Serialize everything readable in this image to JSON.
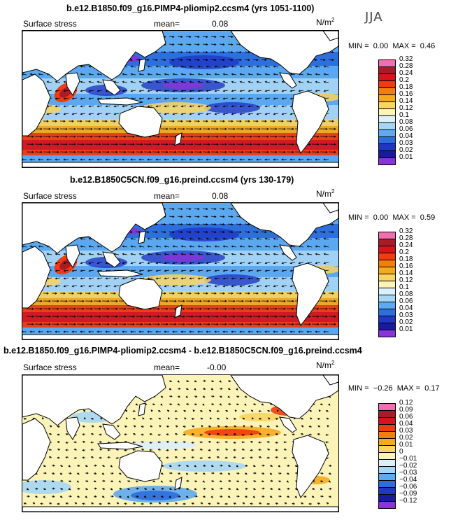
{
  "season": "JJA",
  "panels": [
    {
      "title": "b.e12.B1850.f09_g16.PIMP4-pliomip2.ccsm4 (yrs 1051-1100)",
      "field": "Surface stress",
      "mean_label": "mean=",
      "mean_value": "0.08",
      "units": "N/m",
      "units_exp": "2",
      "min_label": "MIN =",
      "min_value": "0.00",
      "max_label": "MAX =",
      "max_value": "0.46",
      "colorbar": [
        "0.32",
        "0.28",
        "0.24",
        "0.2",
        "0.18",
        "0.16",
        "0.14",
        "0.12",
        "0.1",
        "0.08",
        "0.06",
        "0.04",
        "0.03",
        "0.02",
        "0.01"
      ]
    },
    {
      "title": "b.e12.B1850C5CN.f09_g16.preind.ccsm4 (yrs 130-179)",
      "field": "Surface stress",
      "mean_label": "mean=",
      "mean_value": "0.08",
      "units": "N/m",
      "units_exp": "2",
      "min_label": "MIN =",
      "min_value": "0.00",
      "max_label": "MAX =",
      "max_value": "0.59",
      "colorbar": [
        "0.32",
        "0.28",
        "0.24",
        "0.2",
        "0.18",
        "0.16",
        "0.14",
        "0.12",
        "0.1",
        "0.08",
        "0.06",
        "0.04",
        "0.03",
        "0.02",
        "0.01"
      ]
    },
    {
      "title": "b.e12.B1850.f09_g16.PIMP4-pliomip2.ccsm4 - b.e12.B1850C5CN.f09_g16.preind.ccsm4",
      "field": "Surface stress",
      "mean_label": "mean=",
      "mean_value": "-0.00",
      "units": "N/m",
      "units_exp": "2",
      "min_label": "MIN =",
      "min_value": "−0.26",
      "max_label": "MAX =",
      "max_value": "0.17",
      "colorbar": [
        "0.12",
        "0.09",
        "0.06",
        "0.04",
        "0.03",
        "0.02",
        "0.01",
        "0",
        "−0.01",
        "−0.02",
        "−0.03",
        "−0.04",
        "−0.06",
        "−0.09",
        "−0.12"
      ]
    }
  ],
  "colors": {
    "abs_scale": [
      "#f06fb0",
      "#a81c2a",
      "#d8141a",
      "#f03c10",
      "#f0800e",
      "#f5aa1e",
      "#f8d460",
      "#fbf3b8",
      "#dcf0fb",
      "#a6d6f5",
      "#5eaaf0",
      "#2c6edc",
      "#1f37c4",
      "#1a1aa0",
      "#8a33d8"
    ],
    "diff_scale": [
      "#f06fb0",
      "#a81c2a",
      "#d8141a",
      "#f03c10",
      "#f0800e",
      "#f5aa1e",
      "#f8d460",
      "#fbf3b8",
      "#dcf0fb",
      "#a6d6f5",
      "#5eaaf0",
      "#2c6edc",
      "#1f37c4",
      "#1a1aa0",
      "#8a33d8"
    ]
  }
}
